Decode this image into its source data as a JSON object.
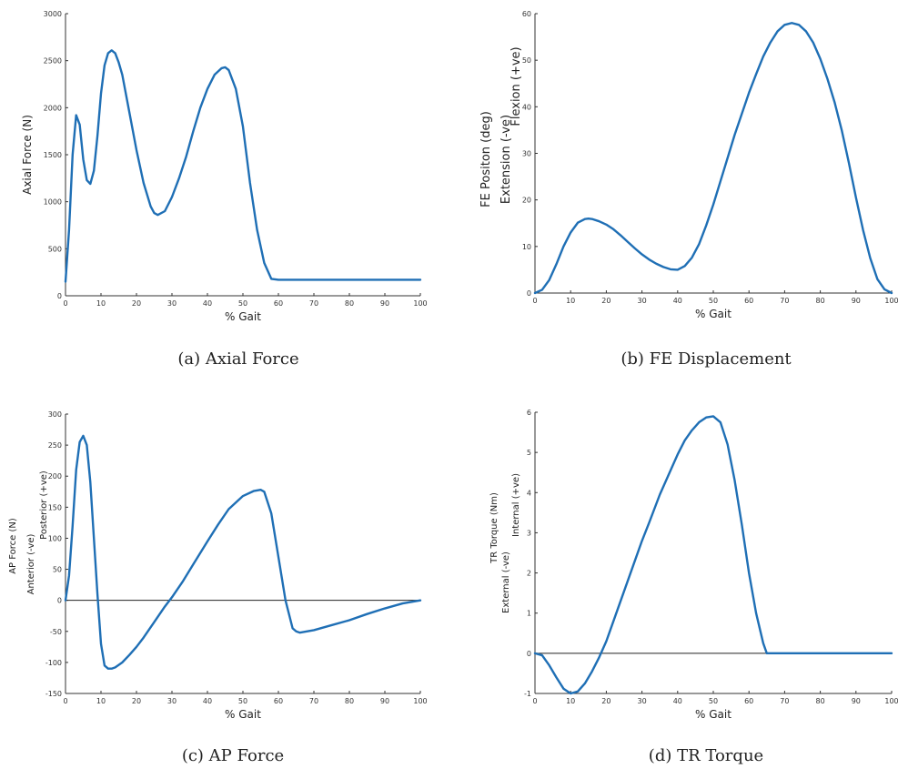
{
  "colors": {
    "series": "#1f6fb5",
    "axis": "#333333"
  },
  "chart_data": [
    {
      "type": "line",
      "caption": "(a) Axial Force",
      "xlabel": "% Gait",
      "ylabel_lines": [
        "Axial Force (N)"
      ],
      "xlim": [
        0,
        100
      ],
      "ylim": [
        0,
        3000
      ],
      "xticks": [
        0,
        10,
        20,
        30,
        40,
        50,
        60,
        70,
        80,
        90,
        100
      ],
      "yticks": [
        0,
        500,
        1000,
        1500,
        2000,
        2500,
        3000
      ],
      "zero_line": false,
      "x": [
        0,
        1,
        2,
        3,
        4,
        5,
        6,
        7,
        8,
        9,
        10,
        11,
        12,
        13,
        14,
        15,
        16,
        18,
        20,
        22,
        24,
        25,
        26,
        28,
        30,
        32,
        34,
        36,
        38,
        40,
        42,
        44,
        45,
        46,
        48,
        50,
        52,
        54,
        56,
        58,
        60,
        65,
        70,
        75,
        80,
        85,
        90,
        95,
        100
      ],
      "y": [
        150,
        700,
        1500,
        1920,
        1820,
        1450,
        1230,
        1190,
        1330,
        1700,
        2150,
        2450,
        2580,
        2610,
        2580,
        2480,
        2350,
        1950,
        1550,
        1200,
        950,
        880,
        860,
        900,
        1050,
        1250,
        1480,
        1750,
        2000,
        2200,
        2350,
        2420,
        2430,
        2400,
        2200,
        1800,
        1200,
        700,
        350,
        180,
        170,
        170,
        170,
        170,
        170,
        170,
        170,
        170,
        170
      ]
    },
    {
      "type": "line",
      "caption": "(b) FE Displacement",
      "xlabel": "% Gait",
      "ylabel_lines": [
        "Extension (-ve)",
        "FE Positon (deg)",
        "Flexion (+ve)"
      ],
      "xlim": [
        0,
        100
      ],
      "ylim": [
        0,
        60
      ],
      "xticks": [
        0,
        10,
        20,
        30,
        40,
        50,
        60,
        70,
        80,
        90,
        100
      ],
      "yticks": [
        0,
        10,
        20,
        30,
        40,
        50,
        60
      ],
      "zero_line": false,
      "x": [
        0,
        2,
        4,
        6,
        8,
        10,
        12,
        14,
        15,
        16,
        18,
        20,
        22,
        24,
        26,
        28,
        30,
        32,
        34,
        36,
        38,
        40,
        42,
        44,
        46,
        48,
        50,
        52,
        54,
        56,
        58,
        60,
        62,
        64,
        66,
        68,
        70,
        72,
        74,
        76,
        78,
        80,
        82,
        84,
        86,
        88,
        90,
        92,
        94,
        96,
        98,
        100
      ],
      "y": [
        0,
        0.7,
        2.8,
        6.2,
        10,
        13,
        15.1,
        15.9,
        16,
        15.9,
        15.4,
        14.7,
        13.7,
        12.4,
        11,
        9.6,
        8.3,
        7.2,
        6.3,
        5.6,
        5.1,
        5,
        5.8,
        7.6,
        10.5,
        14.5,
        19,
        24,
        29,
        34,
        38.5,
        43,
        47,
        50.8,
        53.8,
        56.2,
        57.6,
        58,
        57.6,
        56.2,
        53.8,
        50.3,
        46,
        41,
        35,
        28,
        20.5,
        13.5,
        7.5,
        3,
        0.8,
        0
      ]
    },
    {
      "type": "line",
      "caption": "(c) AP Force",
      "xlabel": "% Gait",
      "ylabel_lines": [
        "Anterior (-ve)",
        "AP Force (N)",
        "Posterior (+ve)"
      ],
      "xlim": [
        0,
        100
      ],
      "ylim": [
        -150,
        300
      ],
      "xticks": [
        0,
        10,
        20,
        30,
        40,
        50,
        60,
        70,
        80,
        90,
        100
      ],
      "yticks": [
        -150,
        -100,
        -50,
        0,
        50,
        100,
        150,
        200,
        250,
        300
      ],
      "zero_line": true,
      "x": [
        0,
        1,
        2,
        3,
        4,
        5,
        6,
        7,
        8,
        9,
        10,
        11,
        12,
        13,
        14,
        16,
        18,
        20,
        22,
        25,
        28,
        30,
        33,
        36,
        40,
        43,
        46,
        50,
        53,
        55,
        56,
        58,
        60,
        62,
        64,
        65,
        66,
        68,
        70,
        75,
        80,
        85,
        90,
        95,
        100
      ],
      "y": [
        0,
        40,
        120,
        210,
        255,
        265,
        250,
        190,
        100,
        10,
        -70,
        -105,
        -110,
        -110,
        -108,
        -100,
        -88,
        -75,
        -60,
        -35,
        -10,
        5,
        30,
        58,
        95,
        122,
        147,
        168,
        176,
        178,
        175,
        140,
        70,
        0,
        -45,
        -50,
        -52,
        -50,
        -48,
        -40,
        -32,
        -22,
        -13,
        -5,
        0
      ]
    },
    {
      "type": "line",
      "caption": "(d) TR Torque",
      "xlabel": "% Gait",
      "ylabel_lines": [
        "External (-ve)",
        "TR Torque (Nm)",
        "Internal (+ve)"
      ],
      "xlim": [
        0,
        100
      ],
      "ylim": [
        -1,
        6
      ],
      "xticks": [
        0,
        10,
        20,
        30,
        40,
        50,
        60,
        70,
        80,
        90,
        100
      ],
      "yticks": [
        -1,
        0,
        1,
        2,
        3,
        4,
        5,
        6
      ],
      "zero_line": true,
      "x": [
        0,
        2,
        4,
        6,
        8,
        10,
        12,
        14,
        16,
        18,
        20,
        22,
        25,
        28,
        30,
        32,
        35,
        38,
        40,
        42,
        44,
        46,
        48,
        50,
        52,
        54,
        56,
        58,
        60,
        62,
        64,
        65,
        70,
        80,
        90,
        100
      ],
      "y": [
        0,
        -0.05,
        -0.3,
        -0.6,
        -0.88,
        -1,
        -0.95,
        -0.75,
        -0.45,
        -0.1,
        0.3,
        0.8,
        1.55,
        2.3,
        2.8,
        3.25,
        3.95,
        4.55,
        4.95,
        5.3,
        5.55,
        5.75,
        5.87,
        5.9,
        5.75,
        5.2,
        4.3,
        3.2,
        2,
        1,
        0.25,
        0,
        0,
        0,
        0,
        0
      ]
    }
  ]
}
